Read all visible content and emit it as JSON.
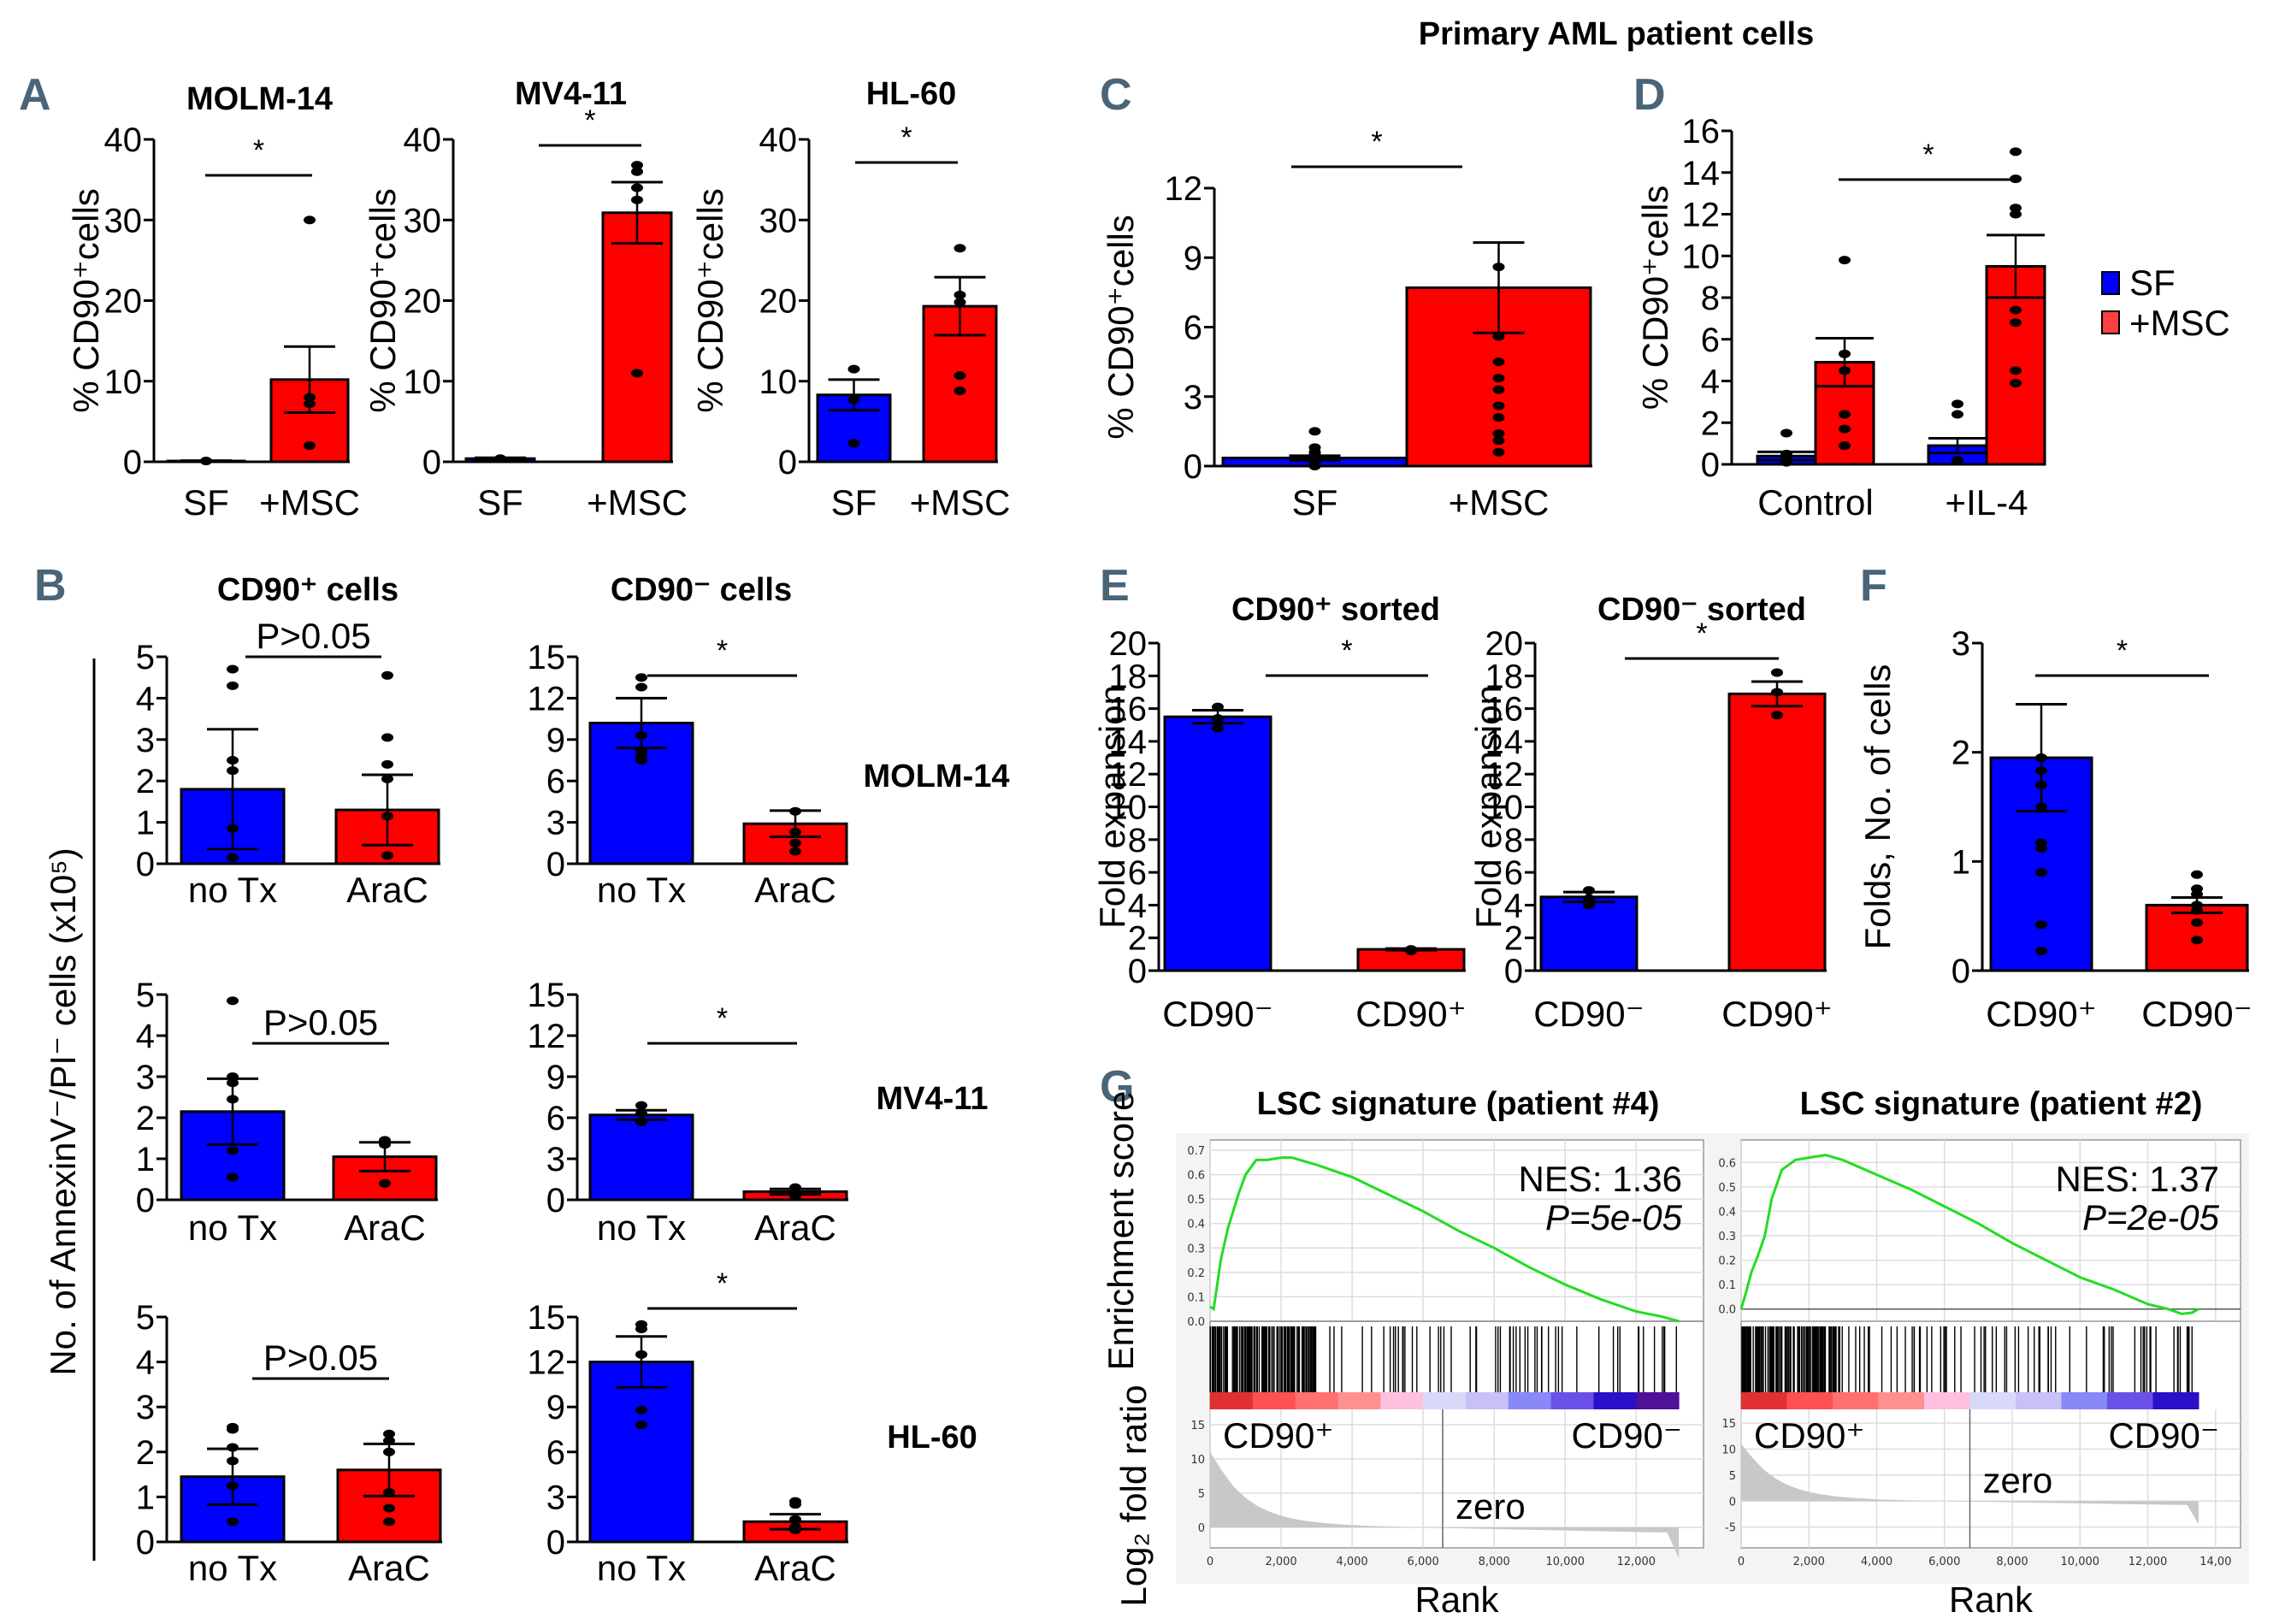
{
  "figure": {
    "header": "Primary AML patient cells",
    "colors": {
      "sf_blue": "#0000ff",
      "msc_red": "#ff0000",
      "panel_label": "#4a6478",
      "gsea_green": "#22dd22",
      "gsea_fill": "#c8c8c8"
    },
    "panel_labels": [
      "A",
      "B",
      "C",
      "D",
      "E",
      "F",
      "G"
    ],
    "legend_D": [
      {
        "label": "SF",
        "color": "#0000ff"
      },
      {
        "label": "+MSC",
        "color": "#ff4040"
      }
    ],
    "B_shared_ylabel": "No. of AnnexinV⁻/PI⁻ cells (x10⁵)",
    "B_col_titles": [
      "CD90⁺ cells",
      "CD90⁻ cells"
    ],
    "B_row_labels": [
      "MOLM-14",
      "MV4-11",
      "HL-60"
    ]
  },
  "chart_data": [
    {
      "id": "A1",
      "type": "bar",
      "title": "MOLM-14",
      "ylabel": "% CD90⁺cells",
      "categories": [
        "SF",
        "+MSC"
      ],
      "values": [
        0.1,
        10.2
      ],
      "sem": [
        0.05,
        4.1
      ],
      "ylim": [
        0,
        40
      ],
      "yticks": [
        0,
        10,
        20,
        30,
        40
      ],
      "points": [
        [
          0.1
        ],
        [
          30,
          8,
          7.2,
          2
        ]
      ],
      "significance": "*",
      "colors": [
        "#0000ff",
        "#ff0000"
      ]
    },
    {
      "id": "A2",
      "type": "bar",
      "title": "MV4-11",
      "ylabel": "% CD90⁺cells",
      "categories": [
        "SF",
        "+MSC"
      ],
      "values": [
        0.4,
        30.9
      ],
      "sem": [
        0.1,
        3.8
      ],
      "ylim": [
        0,
        40
      ],
      "yticks": [
        0,
        10,
        20,
        30,
        40
      ],
      "points": [
        [
          0.4
        ],
        [
          36.8,
          36,
          34,
          32.5,
          11
        ]
      ],
      "significance": "*",
      "colors": [
        "#0000ff",
        "#ff0000"
      ]
    },
    {
      "id": "A3",
      "type": "bar",
      "title": "HL-60",
      "ylabel": "% CD90⁺cells",
      "categories": [
        "SF",
        "+MSC"
      ],
      "values": [
        8.3,
        19.3
      ],
      "sem": [
        1.9,
        3.6
      ],
      "ylim": [
        0,
        40
      ],
      "yticks": [
        0,
        10,
        20,
        30,
        40
      ],
      "points": [
        [
          11.5,
          7.7,
          2.3
        ],
        [
          26.5,
          20.7,
          19.8,
          10.7,
          8.8
        ]
      ],
      "significance": "*",
      "colors": [
        "#0000ff",
        "#ff0000"
      ]
    },
    {
      "id": "C",
      "type": "bar",
      "title": "",
      "ylabel": "% CD90⁺cells",
      "categories": [
        "SF",
        "+MSC"
      ],
      "values": [
        0.35,
        7.7
      ],
      "sem": [
        0.1,
        1.95
      ],
      "ylim": [
        0,
        12
      ],
      "yticks": [
        0,
        3,
        6,
        9,
        12
      ],
      "points": [
        [
          1.5,
          0.8,
          0.6,
          0.5,
          0.4,
          0.3,
          0.2,
          0.1,
          0
        ],
        [
          8.6,
          5.6,
          4.5,
          3.8,
          3.3,
          2.6,
          2.1,
          1.4,
          1.1,
          0.6
        ]
      ],
      "significance": "*",
      "colors": [
        "#0000ff",
        "#ff0000"
      ]
    },
    {
      "id": "D",
      "type": "bar",
      "title": "",
      "ylabel": "% CD90⁺cells",
      "categories": [
        "Control",
        "+IL-4"
      ],
      "series": [
        {
          "name": "SF",
          "values": [
            0.4,
            0.9
          ],
          "sem": [
            0.2,
            0.35
          ],
          "points": [
            [
              1.5,
              0.5,
              0.3,
              0.1
            ],
            [
              2.9,
              2.4,
              0.2
            ]
          ]
        },
        {
          "name": "+MSC",
          "values": [
            4.9,
            9.5
          ],
          "sem": [
            1.15,
            1.5
          ],
          "points": [
            [
              9.8,
              5.3,
              4.5,
              2.4,
              1.7,
              0.9
            ],
            [
              15,
              13.7,
              12.3,
              12,
              7.4,
              6.8,
              4.5,
              3.9
            ]
          ]
        }
      ],
      "ylim": [
        0,
        16
      ],
      "yticks": [
        0,
        2,
        4,
        6,
        8,
        10,
        12,
        14,
        16
      ],
      "significance": "*",
      "legend": "right"
    },
    {
      "id": "B11",
      "type": "bar",
      "categories": [
        "no Tx",
        "AraC"
      ],
      "values": [
        1.8,
        1.3
      ],
      "sem": [
        1.45,
        0.85
      ],
      "ylim": [
        0,
        5
      ],
      "yticks": [
        0,
        1,
        2,
        3,
        4,
        5
      ],
      "points": [
        [
          4.7,
          4.3,
          2.5,
          2.25,
          0.85,
          0.15
        ],
        [
          4.55,
          3.05,
          2.4,
          2.05,
          1.15,
          0.2
        ]
      ],
      "significance": "P>0.05",
      "colors": [
        "#0000ff",
        "#ff0000"
      ]
    },
    {
      "id": "B12",
      "type": "bar",
      "categories": [
        "no Tx",
        "AraC"
      ],
      "values": [
        10.2,
        2.9
      ],
      "sem": [
        1.8,
        0.95
      ],
      "ylim": [
        0,
        15
      ],
      "yticks": [
        0,
        3,
        6,
        9,
        12,
        15
      ],
      "points": [
        [
          13.5,
          12.8,
          9.3,
          8.2,
          7.8,
          7.5
        ],
        [
          3.8,
          2.3,
          1.5,
          0.9
        ]
      ],
      "significance": "*",
      "colors": [
        "#0000ff",
        "#ff0000"
      ]
    },
    {
      "id": "B21",
      "type": "bar",
      "categories": [
        "no Tx",
        "AraC"
      ],
      "values": [
        2.15,
        1.05
      ],
      "sem": [
        0.8,
        0.35
      ],
      "ylim": [
        0,
        5
      ],
      "yticks": [
        0,
        1,
        2,
        3,
        4,
        5
      ],
      "points": [
        [
          4.85,
          3.0,
          2.85,
          2.45,
          1.2,
          0.55
        ],
        [
          1.45,
          1.35,
          0.4
        ]
      ],
      "significance": "P>0.05",
      "colors": [
        "#0000ff",
        "#ff0000"
      ]
    },
    {
      "id": "B22",
      "type": "bar",
      "categories": [
        "no Tx",
        "AraC"
      ],
      "values": [
        6.2,
        0.6
      ],
      "sem": [
        0.35,
        0.2
      ],
      "ylim": [
        0,
        15
      ],
      "yticks": [
        0,
        3,
        6,
        9,
        12,
        15
      ],
      "points": [
        [
          6.9,
          6.3,
          5.7
        ],
        [
          0.9,
          0.5,
          0.3
        ]
      ],
      "significance": "*",
      "colors": [
        "#0000ff",
        "#ff0000"
      ]
    },
    {
      "id": "B31",
      "type": "bar",
      "categories": [
        "no Tx",
        "AraC"
      ],
      "values": [
        1.45,
        1.6
      ],
      "sem": [
        0.62,
        0.58
      ],
      "ylim": [
        0,
        5
      ],
      "yticks": [
        0,
        1,
        2,
        3,
        4,
        5
      ],
      "points": [
        [
          2.55,
          2.5,
          2.1,
          1.8,
          1.25,
          0.45
        ],
        [
          2.4,
          2.25,
          2.0,
          1.1,
          0.75,
          0.45
        ]
      ],
      "significance": "P>0.05",
      "colors": [
        "#0000ff",
        "#ff0000"
      ]
    },
    {
      "id": "B32",
      "type": "bar",
      "categories": [
        "no Tx",
        "AraC"
      ],
      "values": [
        12.0,
        1.35
      ],
      "sem": [
        1.7,
        0.5
      ],
      "ylim": [
        0,
        15
      ],
      "yticks": [
        0,
        3,
        6,
        9,
        12,
        15
      ],
      "points": [
        [
          14.5,
          14.2,
          12.5,
          8.8,
          7.8
        ],
        [
          2.7,
          2.5,
          1.5,
          1.0,
          0.8
        ]
      ],
      "significance": "*",
      "colors": [
        "#0000ff",
        "#ff0000"
      ]
    },
    {
      "id": "E1",
      "type": "bar",
      "title": "CD90⁺ sorted",
      "ylabel": "Fold expansion",
      "categories": [
        "CD90⁻",
        "CD90⁺"
      ],
      "values": [
        15.5,
        1.3
      ],
      "sem": [
        0.4,
        0.05
      ],
      "ylim": [
        0,
        20
      ],
      "yticks": [
        0,
        2,
        4,
        6,
        8,
        10,
        12,
        14,
        16,
        18,
        20
      ],
      "points": [
        [
          16.1,
          15.4,
          14.8
        ],
        [
          1.3,
          1.25,
          1.2
        ]
      ],
      "significance": "*",
      "colors": [
        "#0000ff",
        "#ff0000"
      ]
    },
    {
      "id": "E2",
      "type": "bar",
      "title": "CD90⁻ sorted",
      "ylabel": "Fold expansion",
      "categories": [
        "CD90⁻",
        "CD90⁺"
      ],
      "values": [
        4.5,
        16.9
      ],
      "sem": [
        0.3,
        0.75
      ],
      "ylim": [
        0,
        20
      ],
      "yticks": [
        0,
        2,
        4,
        6,
        8,
        10,
        12,
        14,
        16,
        18,
        20
      ],
      "points": [
        [
          4.9,
          4.4,
          4.0
        ],
        [
          18.2,
          17.0,
          15.6
        ]
      ],
      "significance": "*",
      "colors": [
        "#0000ff",
        "#ff0000"
      ]
    },
    {
      "id": "F",
      "type": "bar",
      "title": "",
      "ylabel": "Folds, No. of cells",
      "categories": [
        "CD90⁺",
        "CD90⁻"
      ],
      "values": [
        1.95,
        0.6
      ],
      "sem": [
        0.49,
        0.07
      ],
      "ylim": [
        0,
        3
      ],
      "yticks": [
        0,
        1,
        2,
        3
      ],
      "points": [
        [
          1.95,
          1.83,
          1.7,
          1.5,
          1.17,
          1.12,
          0.9,
          0.42,
          0.18
        ],
        [
          0.88,
          0.75,
          0.7,
          0.6,
          0.55,
          0.44,
          0.28
        ]
      ],
      "significance": "*",
      "colors": [
        "#0000ff",
        "#ff0000"
      ]
    },
    {
      "id": "G1",
      "type": "line",
      "title": "LSC signature (patient #4)",
      "ylabel": "Enrichment score",
      "ylabel2": "Log₂ fold ratio",
      "xlabel": "Rank",
      "nes": "NES: 1.36",
      "pval": "P=5e-05",
      "xlim": [
        0,
        13200
      ],
      "ylim": [
        0,
        0.7
      ],
      "yticks": [
        "0.0",
        "0.1",
        "0.2",
        "0.3",
        "0.4",
        "0.5",
        "0.6",
        "0.7"
      ],
      "xticks": [
        "0",
        "2,000",
        "4,000",
        "6,000",
        "8,000",
        "10,000",
        "12,000"
      ],
      "x": [
        0,
        100,
        300,
        500,
        800,
        1000,
        1300,
        1600,
        2000,
        2300,
        3000,
        4000,
        5000,
        6000,
        7000,
        8000,
        9000,
        10000,
        11000,
        12000,
        12700,
        13200
      ],
      "y": [
        0.06,
        0.05,
        0.25,
        0.38,
        0.52,
        0.6,
        0.66,
        0.66,
        0.67,
        0.67,
        0.64,
        0.59,
        0.52,
        0.45,
        0.37,
        0.3,
        0.22,
        0.15,
        0.09,
        0.04,
        0.02,
        0.0
      ],
      "zero_cross": 6550,
      "rank_yticks": [
        "15",
        "10",
        "5",
        "0"
      ],
      "rank_ylim": [
        -3,
        16
      ],
      "pos_label": "CD90⁺",
      "neg_label": "CD90⁻",
      "zero_label": "zero",
      "band_colors": [
        "#e03030",
        "#ff5050",
        "#ff7070",
        "#ff9090",
        "#ffc0e0",
        "#d8d8f8",
        "#c8c0f8",
        "#8888f8",
        "#6a50e8",
        "#2a10c8",
        "#501098"
      ]
    },
    {
      "id": "G2",
      "type": "line",
      "title": "LSC signature (patient #2)",
      "xlabel": "Rank",
      "nes": "NES: 1.37",
      "pval": "P=2e-05",
      "xlim": [
        0,
        14000
      ],
      "ylim": [
        -0.05,
        0.65
      ],
      "yticks": [
        "0.0",
        "0.1",
        "0.2",
        "0.3",
        "0.4",
        "0.5",
        "0.6"
      ],
      "xticks": [
        "0",
        "2,000",
        "4,000",
        "6,000",
        "8,000",
        "10,000",
        "12,000",
        "14,00"
      ],
      "x": [
        0,
        150,
        300,
        500,
        700,
        900,
        1200,
        1600,
        2000,
        2500,
        3000,
        4000,
        5000,
        6000,
        7000,
        8000,
        9000,
        10000,
        11000,
        12000,
        12600,
        13000,
        13300,
        13500
      ],
      "y": [
        0.0,
        0.07,
        0.15,
        0.22,
        0.3,
        0.45,
        0.57,
        0.61,
        0.62,
        0.63,
        0.61,
        0.55,
        0.49,
        0.42,
        0.35,
        0.27,
        0.2,
        0.13,
        0.08,
        0.02,
        0.0,
        -0.02,
        -0.015,
        0.0
      ],
      "zero_cross": 6750,
      "rank_yticks": [
        "15",
        "10",
        "5",
        "0",
        "-5"
      ],
      "rank_ylim": [
        -9,
        16
      ],
      "pos_label": "CD90⁺",
      "neg_label": "CD90⁻",
      "zero_label": "zero",
      "band_colors": [
        "#e03030",
        "#ff5050",
        "#ff7070",
        "#ff9090",
        "#ffc0e0",
        "#d8d8f8",
        "#c8c0f8",
        "#8888f8",
        "#6a50e8",
        "#2a10c8"
      ]
    }
  ]
}
